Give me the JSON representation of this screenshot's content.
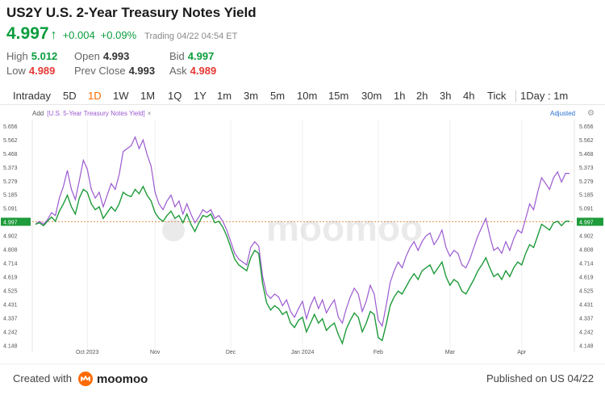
{
  "header": {
    "title": "US2Y U.S. 2-Year Treasury Notes Yield",
    "price": "4.997",
    "arrow": "↑",
    "change": "+0.004",
    "change_pct": "+0.09%",
    "status": "Trading 04/22 04:54 ET"
  },
  "stats": {
    "high_label": "High",
    "high": "5.012",
    "low_label": "Low",
    "low": "4.989",
    "open_label": "Open",
    "open": "4.993",
    "prev_close_label": "Prev Close",
    "prev_close": "4.993",
    "bid_label": "Bid",
    "bid": "4.997",
    "ask_label": "Ask",
    "ask": "4.989"
  },
  "tabs": [
    "Intraday",
    "5D",
    "1D",
    "1W",
    "1M",
    "1Q",
    "1Y",
    "1m",
    "3m",
    "5m",
    "10m",
    "15m",
    "30m",
    "1h",
    "2h",
    "3h",
    "4h",
    "Tick",
    "1Day : 1m"
  ],
  "active_tab": "1D",
  "legend": {
    "add": "Add",
    "compare": "[U.S. 5-Year Treasury Notes Yield]",
    "close": "×",
    "adjusted": "Adjusted",
    "gear_icon": "gear-icon"
  },
  "watermark": "moomoo",
  "colors": {
    "accent": "#ff6a00",
    "up": "#0a9d3c",
    "down": "#e53935",
    "series_main": "#1e9b3a",
    "series_compare": "#9b59d0"
  },
  "chart_data": {
    "type": "line",
    "y_ticks": [
      "5.656",
      "5.562",
      "5.468",
      "5.373",
      "5.279",
      "5.185",
      "5.091",
      "4.997",
      "4.902",
      "4.808",
      "4.714",
      "4.619",
      "4.525",
      "4.431",
      "4.337",
      "4.242",
      "4.148"
    ],
    "ylim": [
      4.1,
      5.7
    ],
    "x_ticks": [
      "Oct 2023",
      "Nov",
      "Dec",
      "Jan 2024",
      "Feb",
      "Mar",
      "Apr"
    ],
    "x_tick_idx": [
      13,
      30,
      49,
      67,
      86,
      104,
      122
    ],
    "reference_line": 4.997,
    "current_label": "4.997",
    "series": [
      {
        "name": "US2Y",
        "values": [
          4.98,
          4.99,
          4.97,
          5.0,
          5.03,
          5.0,
          5.07,
          5.12,
          5.18,
          5.1,
          5.05,
          5.16,
          5.22,
          5.2,
          5.12,
          5.08,
          5.1,
          5.02,
          5.06,
          5.1,
          5.07,
          5.12,
          5.2,
          5.18,
          5.17,
          5.22,
          5.19,
          5.24,
          5.18,
          5.14,
          5.06,
          5.02,
          5.0,
          5.04,
          5.07,
          5.02,
          5.04,
          4.99,
          5.05,
          4.98,
          4.93,
          4.99,
          5.04,
          5.03,
          5.05,
          4.99,
          5.0,
          4.96,
          4.9,
          4.82,
          4.74,
          4.7,
          4.68,
          4.66,
          4.75,
          4.8,
          4.78,
          4.57,
          4.44,
          4.39,
          4.42,
          4.4,
          4.36,
          4.38,
          4.3,
          4.27,
          4.32,
          4.34,
          4.24,
          4.3,
          4.36,
          4.3,
          4.33,
          4.25,
          4.28,
          4.3,
          4.22,
          4.16,
          4.26,
          4.32,
          4.37,
          4.34,
          4.24,
          4.3,
          4.38,
          4.36,
          4.2,
          4.18,
          4.29,
          4.42,
          4.48,
          4.52,
          4.5,
          4.55,
          4.6,
          4.64,
          4.6,
          4.66,
          4.68,
          4.7,
          4.64,
          4.68,
          4.72,
          4.62,
          4.56,
          4.6,
          4.58,
          4.52,
          4.5,
          4.55,
          4.6,
          4.66,
          4.7,
          4.75,
          4.68,
          4.62,
          4.64,
          4.6,
          4.66,
          4.62,
          4.68,
          4.72,
          4.7,
          4.78,
          4.84,
          4.82,
          4.9,
          4.98,
          4.96,
          4.94,
          4.99,
          5.0,
          4.97,
          5.0,
          5.0
        ]
      },
      {
        "name": "US5Y",
        "values": [
          4.98,
          5.0,
          4.98,
          5.01,
          5.06,
          5.04,
          5.16,
          5.24,
          5.35,
          5.22,
          5.15,
          5.28,
          5.42,
          5.36,
          5.22,
          5.16,
          5.2,
          5.1,
          5.18,
          5.26,
          5.22,
          5.32,
          5.48,
          5.5,
          5.52,
          5.58,
          5.5,
          5.56,
          5.46,
          5.38,
          5.2,
          5.12,
          5.08,
          5.14,
          5.18,
          5.1,
          5.14,
          5.05,
          5.12,
          5.05,
          4.99,
          5.03,
          5.08,
          5.06,
          5.08,
          5.02,
          5.04,
          5.0,
          4.94,
          4.86,
          4.78,
          4.74,
          4.72,
          4.7,
          4.82,
          4.86,
          4.83,
          4.62,
          4.5,
          4.47,
          4.5,
          4.48,
          4.42,
          4.46,
          4.38,
          4.34,
          4.4,
          4.45,
          4.33,
          4.42,
          4.48,
          4.4,
          4.46,
          4.37,
          4.42,
          4.46,
          4.34,
          4.3,
          4.4,
          4.48,
          4.54,
          4.5,
          4.38,
          4.45,
          4.56,
          4.5,
          4.32,
          4.28,
          4.42,
          4.58,
          4.66,
          4.72,
          4.68,
          4.76,
          4.82,
          4.86,
          4.8,
          4.86,
          4.9,
          4.92,
          4.84,
          4.88,
          4.94,
          4.82,
          4.76,
          4.8,
          4.78,
          4.7,
          4.68,
          4.74,
          4.82,
          4.9,
          4.96,
          5.02,
          4.9,
          4.8,
          4.82,
          4.78,
          4.86,
          4.8,
          4.88,
          4.94,
          4.92,
          5.02,
          5.12,
          5.08,
          5.2,
          5.3,
          5.26,
          5.22,
          5.3,
          5.34,
          5.27,
          5.33,
          5.33
        ]
      }
    ]
  },
  "footer": {
    "created_with": "Created with",
    "logo_text": "moomoo",
    "published": "Published on US 04/22"
  }
}
